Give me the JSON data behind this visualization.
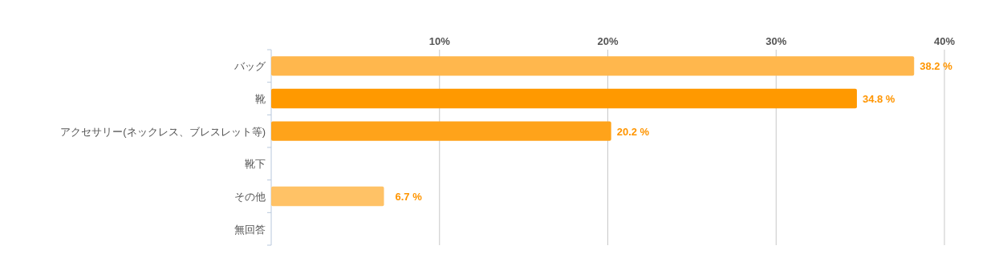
{
  "chart_data": {
    "type": "bar",
    "orientation": "horizontal",
    "categories": [
      "バッグ",
      "靴",
      "アクセサリー(ネックレス、ブレスレット等)",
      "靴下",
      "その他",
      "無回答"
    ],
    "values": [
      38.2,
      34.8,
      20.2,
      0,
      6.7,
      0
    ],
    "colors": [
      "#ffb74d",
      "#ff9900",
      "#ffa31a",
      "#ffb74d",
      "#ffc266",
      "#ff9900"
    ],
    "value_labels": [
      "38.2 %",
      "34.8 %",
      "20.2 %",
      null,
      "6.7 %",
      null
    ],
    "xlim": [
      0,
      40
    ],
    "xticks": [
      {
        "value": 10,
        "label": "10%"
      },
      {
        "value": 20,
        "label": "20%"
      },
      {
        "value": 30,
        "label": "30%"
      },
      {
        "value": 40,
        "label": "40%"
      }
    ],
    "grid": "x"
  }
}
